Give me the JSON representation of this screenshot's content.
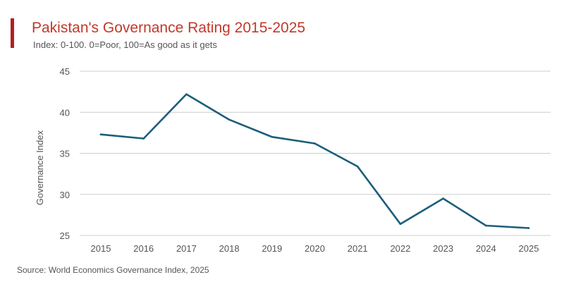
{
  "header": {
    "title": "Pakistan's Governance Rating 2015-2025",
    "subtitle": "Index: 0-100. 0=Poor, 100=As good as it gets"
  },
  "footer": {
    "source": "Source: World Economics Governance Index, 2025"
  },
  "colors": {
    "accent": "#b41e24",
    "title": "#c0392b",
    "line": "#1b5e7b",
    "grid": "#cccccc",
    "text": "#555555"
  },
  "chart_data": {
    "type": "line",
    "title": "Pakistan's Governance Rating 2015-2025",
    "subtitle": "Index: 0-100. 0=Poor, 100=As good as it gets",
    "xlabel": "",
    "ylabel": "Governance Index",
    "x": [
      "2015",
      "2016",
      "2017",
      "2018",
      "2019",
      "2020",
      "2021",
      "2022",
      "2023",
      "2024",
      "2025"
    ],
    "series": [
      {
        "name": "Governance Index",
        "values": [
          37.3,
          36.8,
          42.2,
          39.1,
          37.0,
          36.2,
          33.4,
          26.4,
          29.5,
          26.2,
          25.9
        ]
      }
    ],
    "ylim": [
      25,
      45
    ],
    "yticks": [
      "25",
      "30",
      "35",
      "40",
      "45"
    ],
    "grid": true,
    "legend": "none"
  }
}
